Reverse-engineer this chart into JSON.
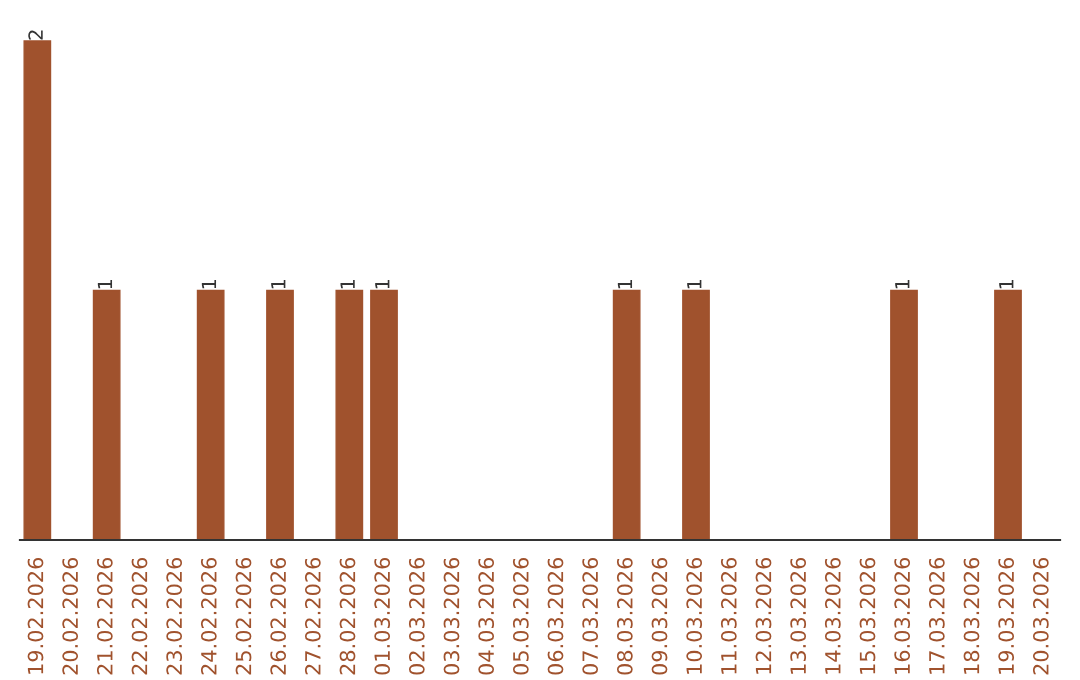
{
  "chart_data": {
    "type": "bar",
    "categories": [
      "19.02.2026",
      "20.02.2026",
      "21.02.2026",
      "22.02.2026",
      "23.02.2026",
      "24.02.2026",
      "25.02.2026",
      "26.02.2026",
      "27.02.2026",
      "28.02.2026",
      "01.03.2026",
      "02.03.2026",
      "03.03.2026",
      "04.03.2026",
      "05.03.2026",
      "06.03.2026",
      "07.03.2026",
      "08.03.2026",
      "09.03.2026",
      "10.03.2026",
      "11.03.2026",
      "12.03.2026",
      "13.03.2026",
      "14.03.2026",
      "15.03.2026",
      "16.03.2026",
      "17.03.2026",
      "18.03.2026",
      "19.03.2026",
      "20.03.2026"
    ],
    "values": [
      2,
      0,
      1,
      0,
      0,
      1,
      0,
      1,
      0,
      1,
      1,
      0,
      0,
      0,
      0,
      0,
      0,
      1,
      0,
      1,
      0,
      0,
      0,
      0,
      0,
      1,
      0,
      0,
      1,
      0
    ],
    "value_labels": [
      "2",
      null,
      "1",
      null,
      null,
      "1",
      null,
      "1",
      null,
      "1",
      "1",
      null,
      null,
      null,
      null,
      null,
      null,
      "1",
      null,
      "1",
      null,
      null,
      null,
      null,
      null,
      "1",
      null,
      null,
      "1",
      null
    ],
    "color": "#a0522d",
    "grid": false,
    "legend": false,
    "tick_labels": "x"
  }
}
